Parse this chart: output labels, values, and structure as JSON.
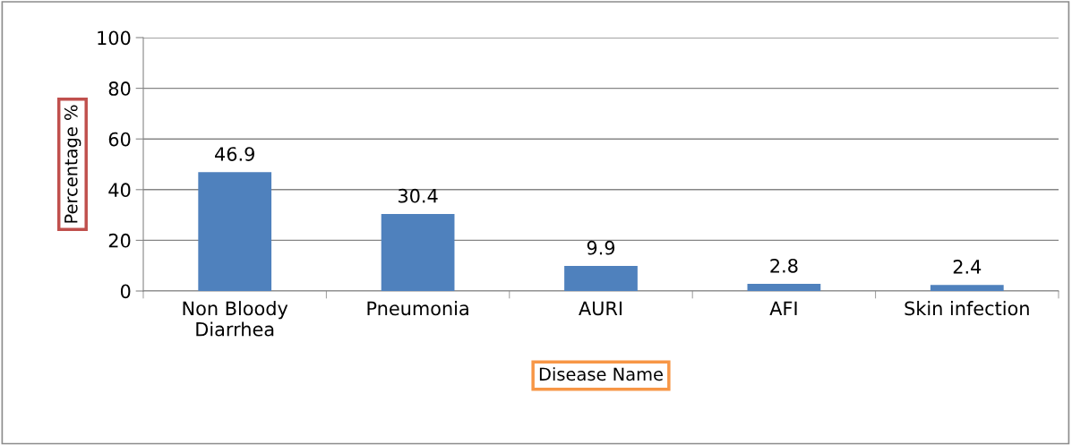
{
  "chart_data": {
    "type": "bar",
    "xlabel": "Disease Name",
    "ylabel": "Percentage %",
    "categories": [
      "Non Bloody\nDiarrhea",
      "Pneumonia",
      "AURI",
      "AFI",
      "Skin infection"
    ],
    "values": [
      46.9,
      30.4,
      9.9,
      2.8,
      2.4
    ],
    "color": "#4f81bd",
    "ylim": [
      0,
      100
    ],
    "yticks": [
      0,
      20,
      40,
      60,
      80,
      100
    ],
    "grid": "y",
    "data_labels": true
  }
}
